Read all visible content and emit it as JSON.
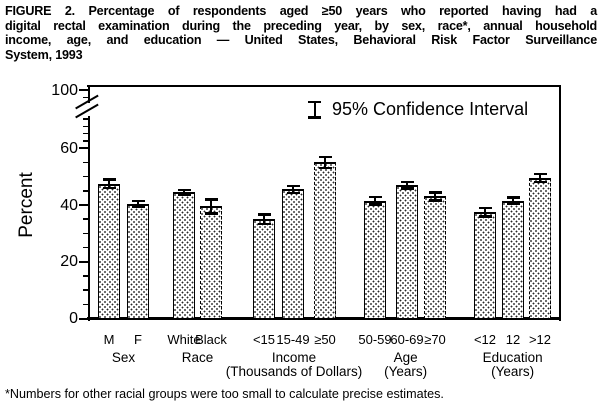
{
  "title": {
    "lines": [
      "FIGURE 2. Percentage of respondents aged ≥50 years who reported having had a",
      "digital rectal examination during the preceding year, by sex, race*, annual household",
      "income, age, and education — United States, Behavioral Risk Factor Surveillance",
      "System, 1993"
    ]
  },
  "footnote": "*Numbers for other racial groups were too small to calculate precise estimates.",
  "chart_data": {
    "type": "bar",
    "title": "FIGURE 2. Percentage of respondents aged ≥50 years who reported having had a digital rectal examination during the preceding year, by sex, race*, annual household income, age, and education — United States, Behavioral Risk Factor Surveillance System, 1993",
    "xlabel": "",
    "ylabel": "Percent",
    "legend": "95% Confidence Interval",
    "legend_position": "top-right-inside",
    "yticks": [
      0,
      20,
      40,
      60,
      100
    ],
    "ylim": [
      0,
      100
    ],
    "axis_break_between": [
      60,
      100
    ],
    "grid": "off",
    "bar_fill": "stipple-dots",
    "colors": {
      "ink": "#000000",
      "background": "#ffffff"
    },
    "groups": [
      {
        "label": "Sex",
        "sublabel": "",
        "bars": [
          {
            "category": "M",
            "value": 47.5,
            "ci": 1.5,
            "outline": "solid"
          },
          {
            "category": "F",
            "value": 40.5,
            "ci": 1.0,
            "outline": "solid"
          }
        ]
      },
      {
        "label": "Race",
        "sublabel": "",
        "bars": [
          {
            "category": "White",
            "value": 44.5,
            "ci": 0.8,
            "outline": "solid"
          },
          {
            "category": "Black",
            "value": 39.5,
            "ci": 2.5,
            "outline": "dashed"
          }
        ]
      },
      {
        "label": "Income",
        "sublabel": "(Thousands of Dollars)",
        "bars": [
          {
            "category": "<15",
            "value": 35.0,
            "ci": 1.6,
            "outline": "solid"
          },
          {
            "category": "15-49",
            "value": 45.5,
            "ci": 1.2,
            "outline": "solid"
          },
          {
            "category": "≥50",
            "value": 55.0,
            "ci": 2.0,
            "outline": "dashed"
          }
        ]
      },
      {
        "label": "Age",
        "sublabel": "(Years)",
        "bars": [
          {
            "category": "50-59",
            "value": 41.5,
            "ci": 1.3,
            "outline": "solid"
          },
          {
            "category": "60-69",
            "value": 47.0,
            "ci": 1.2,
            "outline": "solid"
          },
          {
            "category": "≥70",
            "value": 43.0,
            "ci": 1.4,
            "outline": "dashed"
          }
        ]
      },
      {
        "label": "Education",
        "sublabel": "(Years)",
        "bars": [
          {
            "category": "<12",
            "value": 37.5,
            "ci": 1.5,
            "outline": "solid"
          },
          {
            "category": "12",
            "value": 41.5,
            "ci": 1.2,
            "outline": "solid"
          },
          {
            "category": ">12",
            "value": 49.5,
            "ci": 1.5,
            "outline": "dashed"
          }
        ]
      }
    ]
  }
}
